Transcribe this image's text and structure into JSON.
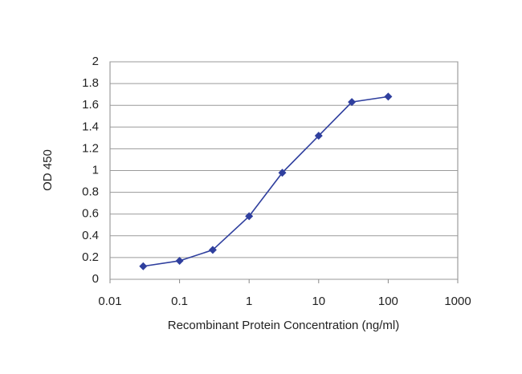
{
  "chart_data": {
    "type": "line",
    "x_label": "Recombinant Protein Concentration (ng/ml)",
    "y_label": "OD 450",
    "x": [
      0.03,
      0.1,
      0.3,
      1,
      3,
      10,
      30,
      100
    ],
    "values": [
      0.12,
      0.17,
      0.27,
      0.58,
      0.98,
      1.32,
      1.63,
      1.68
    ],
    "color": "#2f3f9e",
    "xscale": "log",
    "xlim": [
      0.01,
      1000
    ],
    "xticks": [
      0.01,
      0.1,
      1,
      10,
      100,
      1000
    ],
    "ylim": [
      0,
      2
    ],
    "yticks": [
      0,
      0.2,
      0.4,
      0.6,
      0.8,
      1,
      1.2,
      1.4,
      1.6,
      1.8,
      2
    ],
    "grid": true
  }
}
